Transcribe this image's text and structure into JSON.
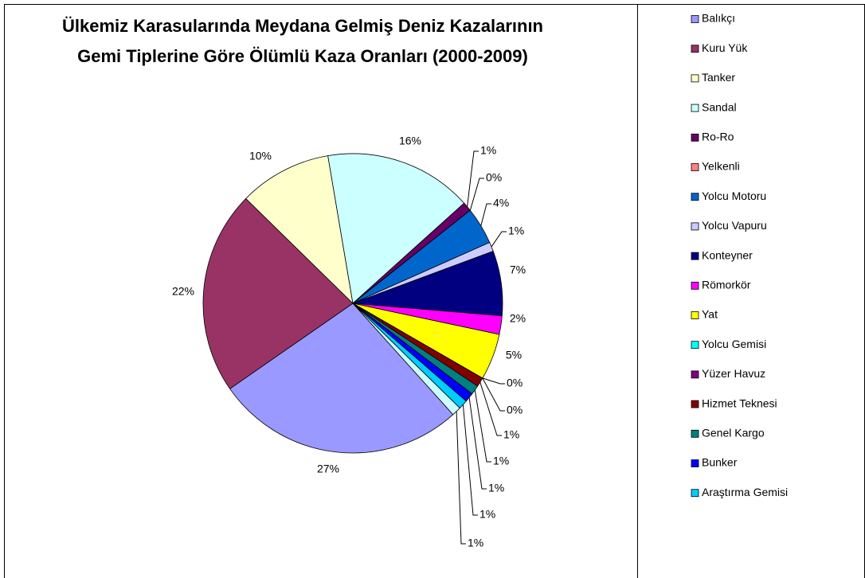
{
  "chart_data": {
    "type": "pie",
    "title": [
      "Ülkemiz Karasularında Meydana Gelmiş Deniz Kazalarının",
      "Gemi Tiplerine Göre Ölümlü Kaza Oranları (2000-2009)"
    ],
    "categories": [
      "Balıkçı",
      "Kuru Yük",
      "Tanker",
      "Sandal",
      "Ro-Ro",
      "Yelkenli",
      "Yolcu Motoru",
      "Yolcu Vapuru",
      "Konteyner",
      "Römorkör",
      "Yat",
      "Yolcu Gemisi",
      "Yüzer Havuz",
      "Hizmet Teknesi",
      "Genel Kargo",
      "Bunker",
      "Araştırma Gemisi",
      null
    ],
    "values": [
      27,
      22,
      10,
      16,
      1,
      0,
      4,
      1,
      7,
      2,
      5,
      0,
      0,
      1,
      1,
      1,
      1,
      1
    ],
    "value_labels": [
      "27%",
      "22%",
      "10%",
      "16%",
      "1%",
      "0%",
      "4%",
      "1%",
      "7%",
      "2%",
      "5%",
      "0%",
      "0%",
      "1%",
      "1%",
      "1%",
      "1%",
      "1%"
    ],
    "colors": [
      "#9999ff",
      "#993366",
      "#ffffcc",
      "#ccffff",
      "#660066",
      "#ff8080",
      "#0066cc",
      "#ccccff",
      "#000080",
      "#ff00ff",
      "#ffff00",
      "#00ffff",
      "#800080",
      "#800000",
      "#008080",
      "#0000ff",
      "#00ccff",
      "#ccffff"
    ],
    "legend": "right"
  }
}
